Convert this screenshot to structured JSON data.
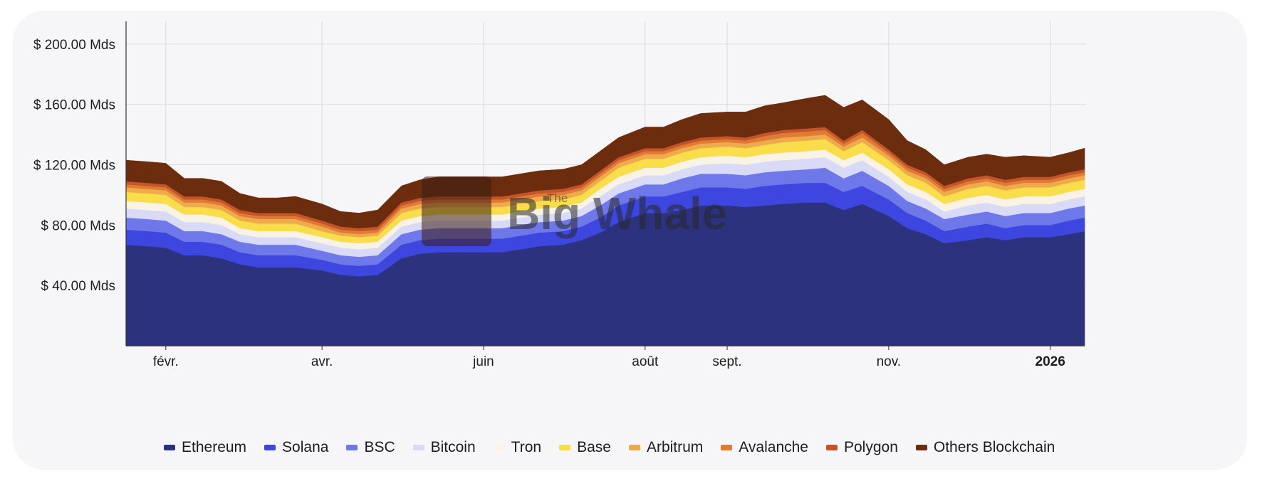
{
  "chart_data": {
    "type": "area",
    "stacked": true,
    "title": "",
    "xlabel": "",
    "ylabel": "",
    "ylim": [
      0,
      215
    ],
    "y_unit": "milliards USD",
    "y_ticks": [
      {
        "value": 40,
        "label": "$ 40.00 Mds"
      },
      {
        "value": 80,
        "label": "$ 80.00 Mds"
      },
      {
        "value": 120,
        "label": "$ 120.00 Mds"
      },
      {
        "value": 160,
        "label": "$ 160.00 Mds"
      },
      {
        "value": 200,
        "label": "$ 200.00 Mds"
      }
    ],
    "x_ticks": [
      {
        "date": "2025-02-01",
        "label": "févr.",
        "bold": false
      },
      {
        "date": "2025-04-01",
        "label": "avr.",
        "bold": false
      },
      {
        "date": "2025-06-01",
        "label": "juin",
        "bold": false
      },
      {
        "date": "2025-08-01",
        "label": "août",
        "bold": false
      },
      {
        "date": "2025-09-01",
        "label": "sept.",
        "bold": false
      },
      {
        "date": "2025-11-01",
        "label": "nov.",
        "bold": false
      },
      {
        "date": "2026-01-01",
        "label": "2026",
        "bold": true
      }
    ],
    "x_range": [
      "2025-01-17",
      "2026-01-14"
    ],
    "x": [
      "2025-01-17",
      "2025-01-25",
      "2025-02-01",
      "2025-02-08",
      "2025-02-15",
      "2025-02-22",
      "2025-03-01",
      "2025-03-08",
      "2025-03-15",
      "2025-03-22",
      "2025-04-01",
      "2025-04-08",
      "2025-04-15",
      "2025-04-22",
      "2025-05-01",
      "2025-05-08",
      "2025-05-15",
      "2025-05-22",
      "2025-06-01",
      "2025-06-08",
      "2025-06-15",
      "2025-06-22",
      "2025-07-01",
      "2025-07-08",
      "2025-07-15",
      "2025-07-22",
      "2025-08-01",
      "2025-08-08",
      "2025-08-15",
      "2025-08-22",
      "2025-09-01",
      "2025-09-08",
      "2025-09-15",
      "2025-09-22",
      "2025-10-01",
      "2025-10-08",
      "2025-10-15",
      "2025-10-22",
      "2025-11-01",
      "2025-11-08",
      "2025-11-15",
      "2025-11-22",
      "2025-12-01",
      "2025-12-08",
      "2025-12-15",
      "2025-12-22",
      "2026-01-01",
      "2026-01-08",
      "2026-01-14"
    ],
    "grid": true,
    "legend_position": "bottom",
    "series": [
      {
        "name": "Ethereum",
        "color": "#2c327d",
        "values": [
          67,
          66,
          65,
          60,
          60,
          58,
          54,
          52,
          52,
          52,
          50,
          47,
          46,
          47,
          58,
          61,
          62,
          62,
          62,
          62,
          64,
          66,
          67,
          70,
          75,
          82,
          88,
          88,
          90,
          93,
          93,
          92,
          93,
          94,
          95,
          95,
          90,
          94,
          86,
          78,
          74,
          68,
          70,
          72,
          70,
          72,
          72,
          74,
          76
        ]
      },
      {
        "name": "Solana",
        "color": "#3d47e0",
        "values": [
          10,
          10,
          10,
          9,
          9,
          9,
          8,
          8,
          8,
          8,
          7,
          7,
          7,
          7,
          9,
          9,
          9,
          9,
          9,
          9,
          9,
          9,
          9,
          9,
          10,
          11,
          11,
          11,
          12,
          12,
          12,
          12,
          13,
          13,
          13,
          13,
          12,
          12,
          11,
          10,
          9,
          8,
          9,
          9,
          8,
          8,
          8,
          9,
          9
        ]
      },
      {
        "name": "BSC",
        "color": "#6f78e8",
        "values": [
          8,
          8,
          8,
          7,
          7,
          7,
          7,
          7,
          7,
          7,
          6,
          6,
          6,
          6,
          7,
          7,
          7,
          7,
          7,
          7,
          7,
          7,
          7,
          7,
          8,
          8,
          8,
          8,
          9,
          9,
          9,
          9,
          9,
          9,
          9,
          10,
          9,
          10,
          9,
          8,
          8,
          8,
          8,
          8,
          8,
          8,
          8,
          8,
          8
        ]
      },
      {
        "name": "Bitcoin",
        "color": "#d9daf5",
        "values": [
          6,
          6,
          6,
          6,
          6,
          6,
          5,
          5,
          5,
          5,
          5,
          5,
          5,
          5,
          5,
          5,
          5,
          5,
          5,
          5,
          5,
          5,
          5,
          5,
          6,
          6,
          6,
          6,
          6,
          6,
          7,
          7,
          7,
          7,
          7,
          7,
          7,
          7,
          6,
          6,
          6,
          5,
          6,
          6,
          6,
          6,
          6,
          6,
          6
        ]
      },
      {
        "name": "Tron",
        "color": "#f9f3e6",
        "values": [
          5,
          5,
          5,
          5,
          5,
          5,
          4,
          4,
          4,
          4,
          4,
          4,
          4,
          4,
          4,
          4,
          4,
          4,
          4,
          4,
          4,
          4,
          4,
          4,
          5,
          5,
          5,
          5,
          5,
          5,
          5,
          5,
          5,
          5,
          5,
          5,
          5,
          5,
          5,
          5,
          5,
          5,
          5,
          5,
          5,
          5,
          5,
          5,
          5
        ]
      },
      {
        "name": "Base",
        "color": "#f9dd4b",
        "values": [
          6,
          6,
          6,
          5,
          5,
          5,
          5,
          5,
          5,
          5,
          4,
          4,
          4,
          4,
          5,
          5,
          5,
          5,
          5,
          5,
          5,
          5,
          5,
          5,
          5,
          6,
          6,
          6,
          6,
          6,
          6,
          6,
          6,
          7,
          7,
          7,
          6,
          7,
          6,
          6,
          6,
          5,
          6,
          6,
          6,
          6,
          6,
          6,
          6
        ]
      },
      {
        "name": "Arbitrum",
        "color": "#efaa4e",
        "values": [
          3,
          3,
          3,
          3,
          3,
          3,
          3,
          3,
          3,
          3,
          3,
          2,
          2,
          2,
          3,
          3,
          3,
          3,
          3,
          3,
          3,
          3,
          3,
          3,
          3,
          3,
          3,
          3,
          3,
          3,
          3,
          3,
          3,
          3,
          3,
          3,
          3,
          3,
          3,
          3,
          3,
          3,
          3,
          3,
          3,
          3,
          3,
          3,
          3
        ]
      },
      {
        "name": "Avalanche",
        "color": "#e07b33",
        "values": [
          2,
          2,
          2,
          2,
          2,
          2,
          2,
          2,
          2,
          2,
          2,
          2,
          2,
          2,
          2,
          2,
          2,
          2,
          2,
          2,
          2,
          2,
          2,
          2,
          2,
          2,
          2,
          2,
          2,
          2,
          2,
          2,
          3,
          3,
          3,
          3,
          2,
          3,
          2,
          2,
          2,
          2,
          2,
          2,
          2,
          2,
          2,
          2,
          2
        ]
      },
      {
        "name": "Polygon",
        "color": "#c4542a",
        "values": [
          2,
          2,
          2,
          2,
          2,
          2,
          2,
          2,
          2,
          2,
          2,
          2,
          2,
          2,
          2,
          2,
          2,
          2,
          2,
          2,
          2,
          2,
          2,
          2,
          2,
          2,
          2,
          2,
          2,
          2,
          2,
          2,
          2,
          2,
          2,
          2,
          2,
          2,
          2,
          2,
          2,
          2,
          2,
          2,
          2,
          2,
          2,
          2,
          2
        ]
      },
      {
        "name": "Others Blockchain",
        "color": "#6b2d0e",
        "values": [
          14,
          14,
          14,
          12,
          12,
          12,
          11,
          10,
          10,
          11,
          11,
          10,
          10,
          11,
          11,
          12,
          13,
          13,
          13,
          13,
          13,
          13,
          13,
          13,
          13,
          13,
          14,
          14,
          15,
          16,
          16,
          17,
          18,
          18,
          20,
          21,
          22,
          20,
          20,
          16,
          15,
          14,
          14,
          14,
          15,
          14,
          13,
          13,
          14
        ]
      }
    ]
  },
  "watermark": {
    "small": "The",
    "text": "Big Whale"
  }
}
